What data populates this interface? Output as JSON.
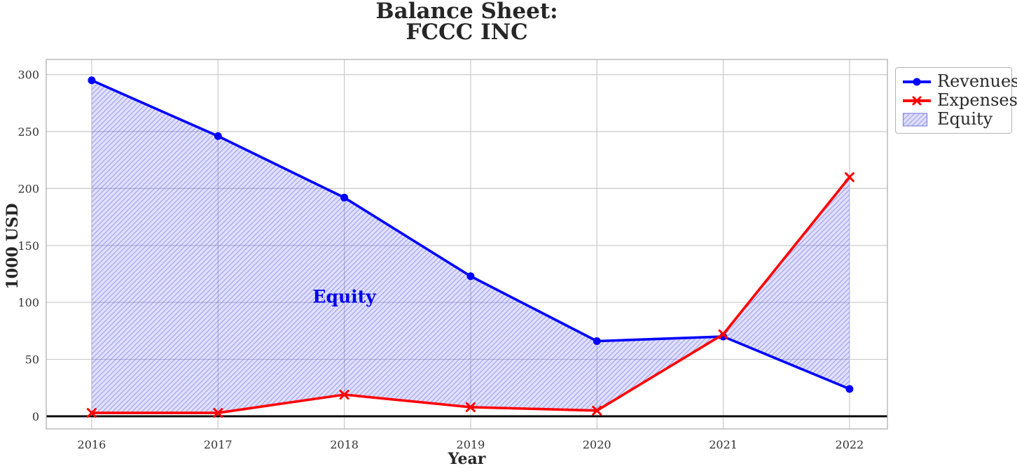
{
  "title": {
    "line1": "Balance Sheet:",
    "line2": "FCCC INC"
  },
  "colors": {
    "revenues": "#0000ff",
    "expenses": "#ff0000",
    "equity_fill_base": "rgba(0,0,255,0.12)",
    "equity_hatch": "rgba(70,70,205,0.38)",
    "equity_swatch_border": "rgba(130,130,225,0.95)",
    "grid": "#c9c9c9",
    "spine": "#b0b0b0",
    "zero_line": "#000000",
    "tick_text": "#333333",
    "annotation_text": "#0000ee"
  },
  "chart_data": {
    "type": "line",
    "title": "Balance Sheet: FCCC INC",
    "xlabel": "Year",
    "ylabel": "1000 USD",
    "x": [
      2016,
      2017,
      2018,
      2019,
      2020,
      2021,
      2022
    ],
    "xtick_labels": [
      "2016",
      "2017",
      "2018",
      "2019",
      "2020",
      "2021",
      "2022"
    ],
    "yticks": [
      0,
      50,
      100,
      150,
      200,
      250,
      300
    ],
    "ytick_labels": [
      "0",
      "50",
      "100",
      "150",
      "200",
      "250",
      "300"
    ],
    "xlim": [
      2015.64,
      2022.3
    ],
    "ylim": [
      -11.1,
      313.3
    ],
    "grid": true,
    "zero_line": true,
    "series": [
      {
        "name": "Revenues",
        "color": "#0000ff",
        "marker": "circle",
        "values": [
          295,
          246,
          192,
          123,
          66,
          70,
          24
        ]
      },
      {
        "name": "Expenses",
        "color": "#ff0000",
        "marker": "x",
        "values": [
          3,
          3,
          19,
          8,
          5,
          72,
          210
        ]
      }
    ],
    "fill_between": {
      "between": [
        "Revenues",
        "Expenses"
      ],
      "label": "Equity",
      "hatch": "//"
    },
    "annotations": [
      {
        "text": "Equity",
        "x": 2018,
        "y": 105
      }
    ],
    "legend": [
      "Revenues",
      "Expenses",
      "Equity"
    ],
    "legend_position": "outside-upper-right"
  }
}
